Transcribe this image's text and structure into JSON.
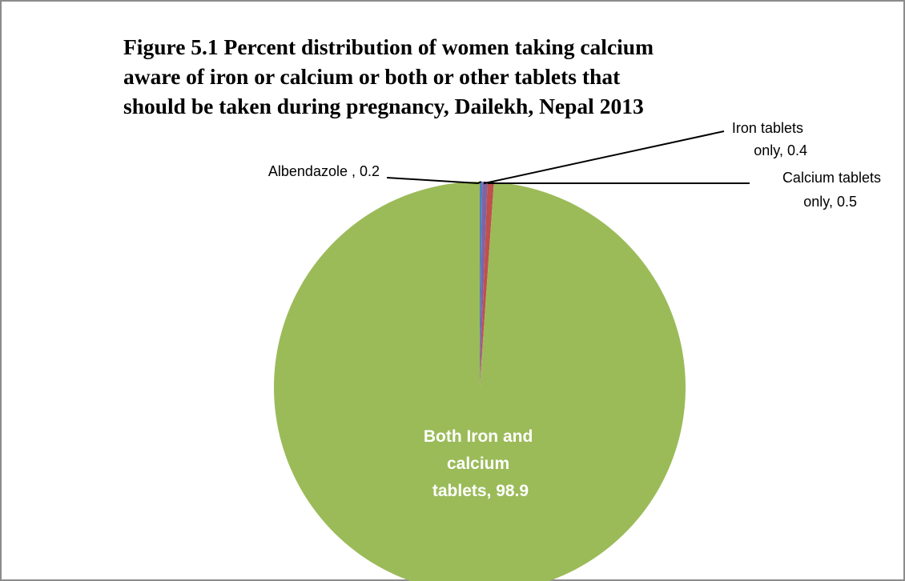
{
  "chart_data": {
    "type": "pie",
    "title_lines": [
      "Figure 5.1  Percent distribution of women taking calcium",
      "aware of iron or calcium or both  or other tablets that",
      "should be taken during pregnancy, Dailekh, Nepal 2013"
    ],
    "slices": [
      {
        "label": "Albendazole",
        "value": 0.2,
        "color": "#4f81bd",
        "label_lines": [
          "Albendazole ,  0.2"
        ]
      },
      {
        "label": "Iron tablets only",
        "value": 0.4,
        "color": "#8064a2",
        "label_lines": [
          "Iron tablets",
          "only,  0.4"
        ]
      },
      {
        "label": "Calcium tablets only",
        "value": 0.5,
        "color": "#c0504d",
        "label_lines": [
          "Calcium tablets",
          "only,  0.5"
        ]
      },
      {
        "label": "Both Iron and calcium tablets",
        "value": 98.9,
        "color": "#9bbb59",
        "label_lines": [
          "Both Iron and",
          "calcium",
          "tablets,  98.9"
        ]
      }
    ],
    "start_angle": "12 o'clock",
    "direction": "clockwise",
    "legend": "none",
    "data_labels": "category name and value"
  }
}
